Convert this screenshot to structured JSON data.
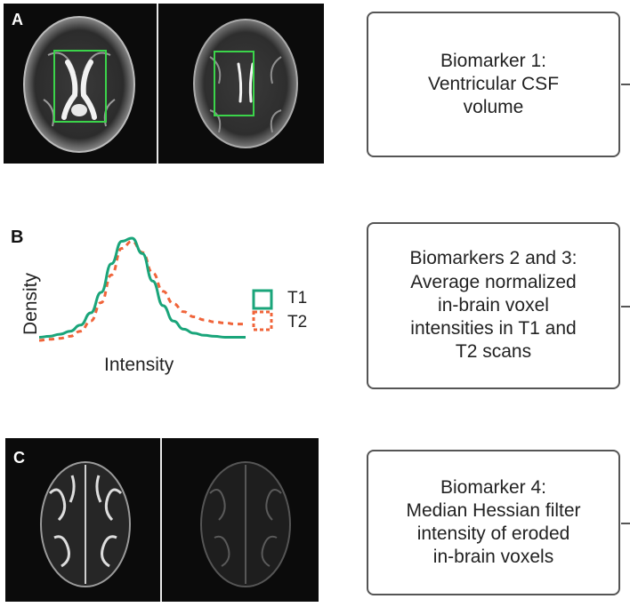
{
  "panels": {
    "a": {
      "label": "A"
    },
    "b": {
      "label": "B"
    },
    "c": {
      "label": "C"
    }
  },
  "biomarkers": [
    {
      "lines": [
        "Biomarker 1:",
        "Ventricular CSF",
        "volume"
      ]
    },
    {
      "lines": [
        "Biomarkers 2 and 3:",
        "Average normalized",
        "in-brain voxel",
        "intensities in T1 and",
        "T2 scans"
      ]
    },
    {
      "lines": [
        "Biomarker 4:",
        "Median Hessian filter",
        "intensity of eroded",
        "in-brain voxels"
      ]
    }
  ],
  "chart": {
    "ylabel": "Density",
    "xlabel": "Intensity",
    "legend": [
      {
        "name": "T1",
        "color": "#1aa57a",
        "style": "solid"
      },
      {
        "name": "T2",
        "color": "#f0643a",
        "style": "dashed"
      }
    ]
  },
  "chart_data": {
    "type": "line",
    "xlabel": "Intensity",
    "ylabel": "Density",
    "series": [
      {
        "name": "T1",
        "x": [
          0,
          0.05,
          0.1,
          0.15,
          0.2,
          0.25,
          0.3,
          0.35,
          0.4,
          0.45,
          0.5,
          0.55,
          0.6,
          0.65,
          0.7,
          0.75,
          0.8,
          0.85,
          0.9,
          0.95,
          1.0
        ],
        "values": [
          0.03,
          0.04,
          0.06,
          0.09,
          0.15,
          0.27,
          0.47,
          0.75,
          0.97,
          1.0,
          0.85,
          0.58,
          0.34,
          0.19,
          0.11,
          0.07,
          0.05,
          0.04,
          0.03,
          0.03,
          0.03
        ]
      },
      {
        "name": "T2",
        "x": [
          0,
          0.05,
          0.1,
          0.15,
          0.2,
          0.25,
          0.3,
          0.35,
          0.4,
          0.45,
          0.5,
          0.55,
          0.6,
          0.65,
          0.7,
          0.75,
          0.8,
          0.85,
          0.9,
          0.95,
          1.0
        ],
        "values": [
          0.0,
          0.01,
          0.02,
          0.04,
          0.09,
          0.19,
          0.37,
          0.64,
          0.9,
          0.97,
          0.86,
          0.66,
          0.48,
          0.36,
          0.28,
          0.23,
          0.2,
          0.18,
          0.17,
          0.16,
          0.16
        ]
      }
    ]
  },
  "colors": {
    "roi_box": "#3bd44a",
    "t1": "#1aa57a",
    "t2": "#f0643a",
    "box_border": "#555555",
    "panel_bg": "#0b0b0b"
  }
}
